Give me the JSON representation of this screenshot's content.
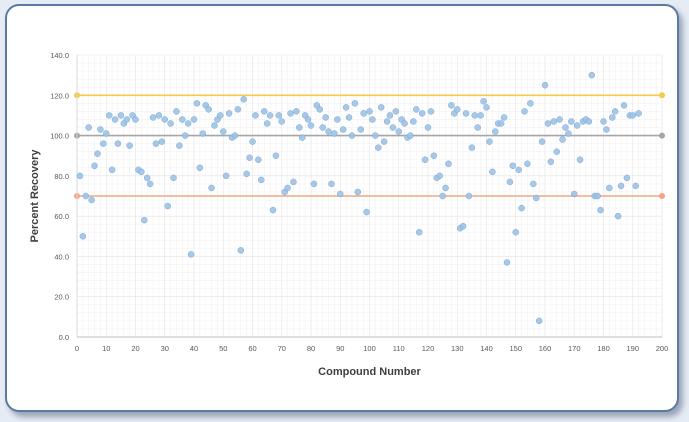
{
  "chart_data": {
    "type": "scatter",
    "title": "",
    "xlabel": "Compound Number",
    "ylabel": "Percent Recovery",
    "xlim": [
      0,
      200
    ],
    "ylim": [
      0,
      140
    ],
    "x_ticks": [
      "0",
      "10",
      "20",
      "30",
      "40",
      "50",
      "60",
      "70",
      "80",
      "90",
      "100",
      "110",
      "120",
      "130",
      "140",
      "150",
      "160",
      "170",
      "180",
      "190",
      "200"
    ],
    "y_ticks": [
      "0.0",
      "20.0",
      "40.0",
      "60.0",
      "80.0",
      "100.0",
      "120.0",
      "140.0"
    ],
    "grid": true,
    "legend": "none",
    "reference_lines": [
      {
        "y": 120,
        "color": "#f7c948"
      },
      {
        "y": 100,
        "color": "#a6a6a6"
      },
      {
        "y": 70,
        "color": "#f4a582"
      }
    ],
    "series": [
      {
        "color": "#9dc3e6",
        "points": [
          [
            1,
            80
          ],
          [
            2,
            50
          ],
          [
            3,
            70
          ],
          [
            4,
            104
          ],
          [
            5,
            68
          ],
          [
            6,
            85
          ],
          [
            7,
            91
          ],
          [
            8,
            103
          ],
          [
            9,
            96
          ],
          [
            10,
            101
          ],
          [
            11,
            110
          ],
          [
            12,
            83
          ],
          [
            13,
            108
          ],
          [
            14,
            96
          ],
          [
            15,
            110
          ],
          [
            16,
            106
          ],
          [
            17,
            108
          ],
          [
            18,
            95
          ],
          [
            19,
            110
          ],
          [
            20,
            108
          ],
          [
            21,
            83
          ],
          [
            22,
            82
          ],
          [
            23,
            58
          ],
          [
            24,
            79
          ],
          [
            25,
            76
          ],
          [
            26,
            109
          ],
          [
            27,
            96
          ],
          [
            28,
            110
          ],
          [
            29,
            97
          ],
          [
            30,
            108
          ],
          [
            31,
            65
          ],
          [
            32,
            106
          ],
          [
            33,
            79
          ],
          [
            34,
            112
          ],
          [
            35,
            95
          ],
          [
            36,
            108
          ],
          [
            37,
            100
          ],
          [
            38,
            106
          ],
          [
            39,
            41
          ],
          [
            40,
            108
          ],
          [
            41,
            116
          ],
          [
            42,
            84
          ],
          [
            43,
            101
          ],
          [
            44,
            115
          ],
          [
            45,
            113
          ],
          [
            46,
            74
          ],
          [
            47,
            105
          ],
          [
            48,
            108
          ],
          [
            49,
            110
          ],
          [
            50,
            102
          ],
          [
            51,
            80
          ],
          [
            52,
            111
          ],
          [
            53,
            99
          ],
          [
            54,
            100
          ],
          [
            55,
            113
          ],
          [
            56,
            43
          ],
          [
            57,
            118
          ],
          [
            58,
            81
          ],
          [
            59,
            89
          ],
          [
            60,
            97
          ],
          [
            61,
            110
          ],
          [
            62,
            88
          ],
          [
            63,
            78
          ],
          [
            64,
            112
          ],
          [
            65,
            106
          ],
          [
            66,
            110
          ],
          [
            67,
            63
          ],
          [
            68,
            90
          ],
          [
            69,
            110
          ],
          [
            70,
            107
          ],
          [
            71,
            72
          ],
          [
            72,
            74
          ],
          [
            73,
            111
          ],
          [
            74,
            77
          ],
          [
            75,
            112
          ],
          [
            76,
            104
          ],
          [
            77,
            99
          ],
          [
            78,
            110
          ],
          [
            79,
            108
          ],
          [
            80,
            105
          ],
          [
            81,
            76
          ],
          [
            82,
            115
          ],
          [
            83,
            113
          ],
          [
            84,
            104
          ],
          [
            85,
            109
          ],
          [
            86,
            102
          ],
          [
            87,
            76
          ],
          [
            88,
            101
          ],
          [
            89,
            108
          ],
          [
            90,
            71
          ],
          [
            91,
            103
          ],
          [
            92,
            114
          ],
          [
            93,
            109
          ],
          [
            94,
            100
          ],
          [
            95,
            116
          ],
          [
            96,
            72
          ],
          [
            97,
            103
          ],
          [
            98,
            111
          ],
          [
            99,
            62
          ],
          [
            100,
            112
          ],
          [
            101,
            108
          ],
          [
            102,
            100
          ],
          [
            103,
            94
          ],
          [
            104,
            114
          ],
          [
            105,
            97
          ],
          [
            106,
            107
          ],
          [
            107,
            110
          ],
          [
            108,
            104
          ],
          [
            109,
            112
          ],
          [
            110,
            102
          ],
          [
            111,
            108
          ],
          [
            112,
            106
          ],
          [
            113,
            99
          ],
          [
            114,
            100
          ],
          [
            115,
            107
          ],
          [
            116,
            113
          ],
          [
            117,
            52
          ],
          [
            118,
            111
          ],
          [
            119,
            88
          ],
          [
            120,
            104
          ],
          [
            121,
            112
          ],
          [
            122,
            90
          ],
          [
            123,
            79
          ],
          [
            124,
            80
          ],
          [
            125,
            70
          ],
          [
            126,
            74
          ],
          [
            127,
            86
          ],
          [
            128,
            115
          ],
          [
            129,
            111
          ],
          [
            130,
            113
          ],
          [
            131,
            54
          ],
          [
            132,
            55
          ],
          [
            133,
            111
          ],
          [
            134,
            70
          ],
          [
            135,
            94
          ],
          [
            136,
            110
          ],
          [
            137,
            104
          ],
          [
            138,
            110
          ],
          [
            139,
            117
          ],
          [
            140,
            114
          ],
          [
            141,
            97
          ],
          [
            142,
            82
          ],
          [
            143,
            102
          ],
          [
            144,
            106
          ],
          [
            145,
            106
          ],
          [
            146,
            109
          ],
          [
            147,
            37
          ],
          [
            148,
            77
          ],
          [
            149,
            85
          ],
          [
            150,
            52
          ],
          [
            151,
            83
          ],
          [
            152,
            64
          ],
          [
            153,
            112
          ],
          [
            154,
            86
          ],
          [
            155,
            116
          ],
          [
            156,
            76
          ],
          [
            157,
            69
          ],
          [
            158,
            8
          ],
          [
            159,
            97
          ],
          [
            160,
            125
          ],
          [
            161,
            106
          ],
          [
            162,
            87
          ],
          [
            163,
            107
          ],
          [
            164,
            92
          ],
          [
            165,
            108
          ],
          [
            166,
            98
          ],
          [
            167,
            104
          ],
          [
            168,
            101
          ],
          [
            169,
            107
          ],
          [
            170,
            71
          ],
          [
            171,
            105
          ],
          [
            172,
            88
          ],
          [
            173,
            107
          ],
          [
            174,
            108
          ],
          [
            175,
            107
          ],
          [
            176,
            130
          ],
          [
            177,
            70
          ],
          [
            178,
            70
          ],
          [
            179,
            63
          ],
          [
            180,
            107
          ],
          [
            181,
            103
          ],
          [
            182,
            74
          ],
          [
            183,
            109
          ],
          [
            184,
            112
          ],
          [
            185,
            60
          ],
          [
            186,
            75
          ],
          [
            187,
            115
          ],
          [
            188,
            79
          ],
          [
            189,
            110
          ],
          [
            190,
            110
          ],
          [
            191,
            75
          ],
          [
            192,
            111
          ]
        ]
      }
    ]
  }
}
